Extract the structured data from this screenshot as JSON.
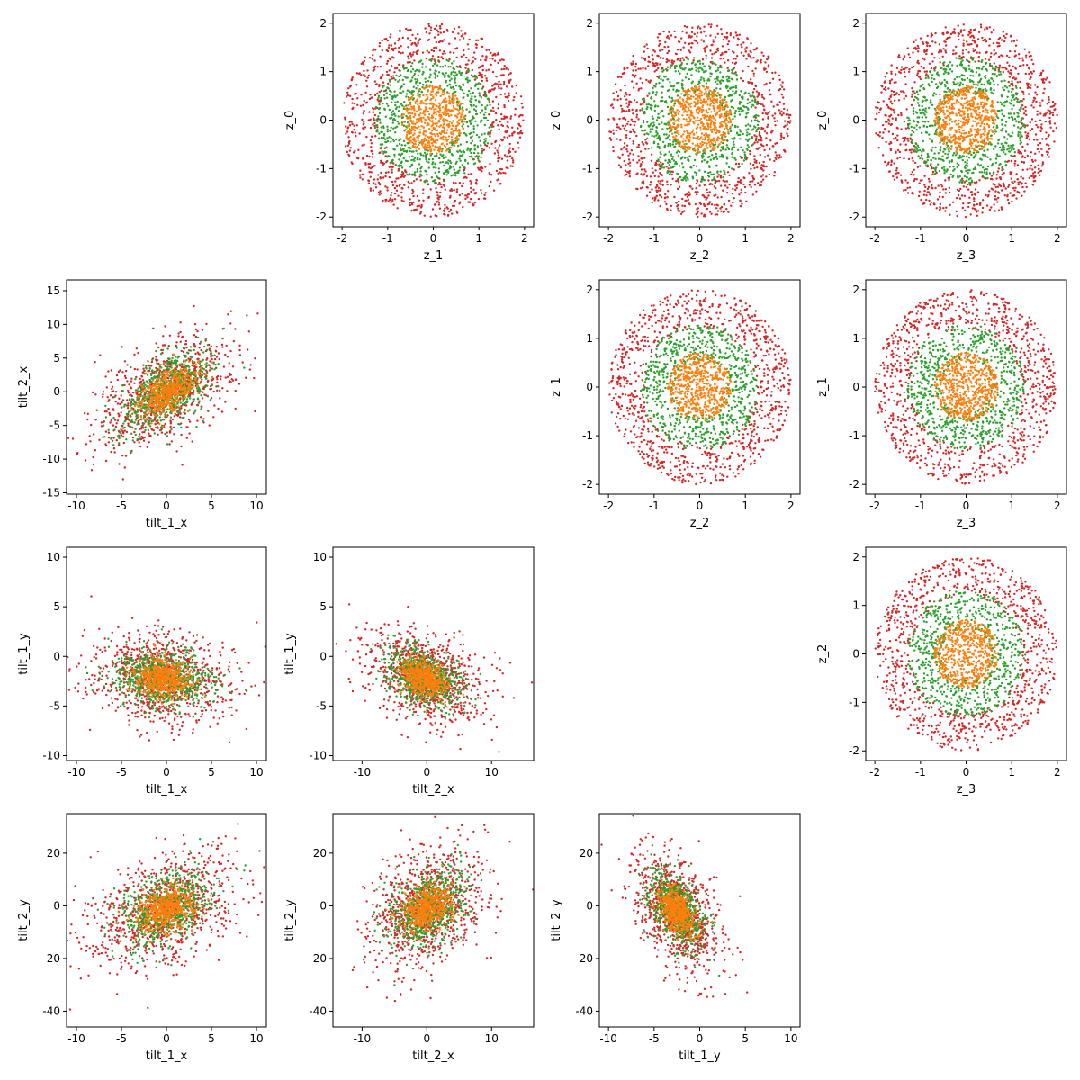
{
  "figure": {
    "background": "#ffffff",
    "colors": {
      "outer": "#d62728",
      "middle": "#2ca02c",
      "inner": "#ff7f0e",
      "axes": "#000000"
    }
  },
  "chart_data": [
    {
      "type": "scatter",
      "xlabel": "z_1",
      "ylabel": "z_0",
      "xlim": [
        -2.2,
        2.2
      ],
      "ylim": [
        -2.2,
        2.2
      ],
      "xticks": [
        -2,
        -1,
        0,
        1,
        2
      ],
      "yticks": [
        -2,
        -1,
        0,
        1,
        2
      ],
      "distribution": "rings",
      "rings": [
        2.0,
        1.3,
        0.7
      ]
    },
    {
      "type": "scatter",
      "xlabel": "z_2",
      "ylabel": "z_0",
      "xlim": [
        -2.2,
        2.2
      ],
      "ylim": [
        -2.2,
        2.2
      ],
      "xticks": [
        -2,
        -1,
        0,
        1,
        2
      ],
      "yticks": [
        -2,
        -1,
        0,
        1,
        2
      ],
      "distribution": "rings",
      "rings": [
        2.0,
        1.3,
        0.7
      ]
    },
    {
      "type": "scatter",
      "xlabel": "z_3",
      "ylabel": "z_0",
      "xlim": [
        -2.2,
        2.2
      ],
      "ylim": [
        -2.2,
        2.2
      ],
      "xticks": [
        -2,
        -1,
        0,
        1,
        2
      ],
      "yticks": [
        -2,
        -1,
        0,
        1,
        2
      ],
      "distribution": "rings",
      "rings": [
        2.0,
        1.3,
        0.7
      ]
    },
    {
      "type": "scatter",
      "xlabel": "tilt_1_x",
      "ylabel": "tilt_2_x",
      "xlim": [
        -11.1,
        11.1
      ],
      "ylim": [
        -15.2,
        16.6
      ],
      "xticks": [
        -10,
        -5,
        0,
        5,
        10
      ],
      "yticks": [
        -15,
        -10,
        -5,
        0,
        5,
        10,
        15
      ],
      "distribution": "gaussian",
      "center": [
        0,
        0
      ],
      "spread": [
        4.0,
        4.5
      ],
      "correlation": 0.55
    },
    {
      "type": "scatter",
      "xlabel": "z_2",
      "ylabel": "z_1",
      "xlim": [
        -2.2,
        2.2
      ],
      "ylim": [
        -2.2,
        2.2
      ],
      "xticks": [
        -2,
        -1,
        0,
        1,
        2
      ],
      "yticks": [
        -2,
        -1,
        0,
        1,
        2
      ],
      "distribution": "rings",
      "rings": [
        2.0,
        1.3,
        0.7
      ]
    },
    {
      "type": "scatter",
      "xlabel": "z_3",
      "ylabel": "z_1",
      "xlim": [
        -2.2,
        2.2
      ],
      "ylim": [
        -2.2,
        2.2
      ],
      "xticks": [
        -2,
        -1,
        0,
        1,
        2
      ],
      "yticks": [
        -2,
        -1,
        0,
        1,
        2
      ],
      "distribution": "rings",
      "rings": [
        2.0,
        1.3,
        0.7
      ]
    },
    {
      "type": "scatter",
      "xlabel": "tilt_1_x",
      "ylabel": "tilt_1_y",
      "xlim": [
        -11.1,
        11.1
      ],
      "ylim": [
        -10.5,
        11.0
      ],
      "xticks": [
        -10,
        -5,
        0,
        5,
        10
      ],
      "yticks": [
        -10,
        -5,
        0,
        5,
        10
      ],
      "distribution": "gaussian",
      "center": [
        -0.5,
        -2.2
      ],
      "spread": [
        4.0,
        2.3
      ],
      "correlation": -0.1
    },
    {
      "type": "scatter",
      "xlabel": "tilt_2_x",
      "ylabel": "tilt_1_y",
      "xlim": [
        -14.5,
        16.5
      ],
      "ylim": [
        -10.5,
        11.0
      ],
      "xticks": [
        -10,
        0,
        10
      ],
      "yticks": [
        -10,
        -5,
        0,
        5,
        10
      ],
      "distribution": "gaussian",
      "center": [
        -0.5,
        -2.2
      ],
      "spread": [
        4.5,
        2.3
      ],
      "correlation": -0.35
    },
    {
      "type": "scatter",
      "xlabel": "z_3",
      "ylabel": "z_2",
      "xlim": [
        -2.2,
        2.2
      ],
      "ylim": [
        -2.2,
        2.2
      ],
      "xticks": [
        -2,
        -1,
        0,
        1,
        2
      ],
      "yticks": [
        -2,
        -1,
        0,
        1,
        2
      ],
      "distribution": "rings",
      "rings": [
        2.0,
        1.3,
        0.7
      ]
    },
    {
      "type": "scatter",
      "xlabel": "tilt_1_x",
      "ylabel": "tilt_2_y",
      "xlim": [
        -11.1,
        11.1
      ],
      "ylim": [
        -46,
        35
      ],
      "xticks": [
        -10,
        -5,
        0,
        5,
        10
      ],
      "yticks": [
        -40,
        -20,
        0,
        20
      ],
      "distribution": "gaussian",
      "center": [
        0,
        -1
      ],
      "spread": [
        4.0,
        11
      ],
      "correlation": 0.35
    },
    {
      "type": "scatter",
      "xlabel": "tilt_2_x",
      "ylabel": "tilt_2_y",
      "xlim": [
        -14.5,
        16.5
      ],
      "ylim": [
        -46,
        35
      ],
      "xticks": [
        -10,
        0,
        10
      ],
      "yticks": [
        -40,
        -20,
        0,
        20
      ],
      "distribution": "gaussian",
      "center": [
        0,
        -1
      ],
      "spread": [
        4.5,
        11
      ],
      "correlation": 0.3
    },
    {
      "type": "scatter",
      "xlabel": "tilt_1_y",
      "ylabel": "tilt_2_y",
      "xlim": [
        -11,
        11
      ],
      "ylim": [
        -46,
        35
      ],
      "xticks": [
        -10,
        -5,
        0,
        5,
        10
      ],
      "yticks": [
        -40,
        -20,
        0,
        20
      ],
      "distribution": "gaussian",
      "center": [
        -2.5,
        -2
      ],
      "spread": [
        2.3,
        11
      ],
      "correlation": -0.45
    }
  ]
}
